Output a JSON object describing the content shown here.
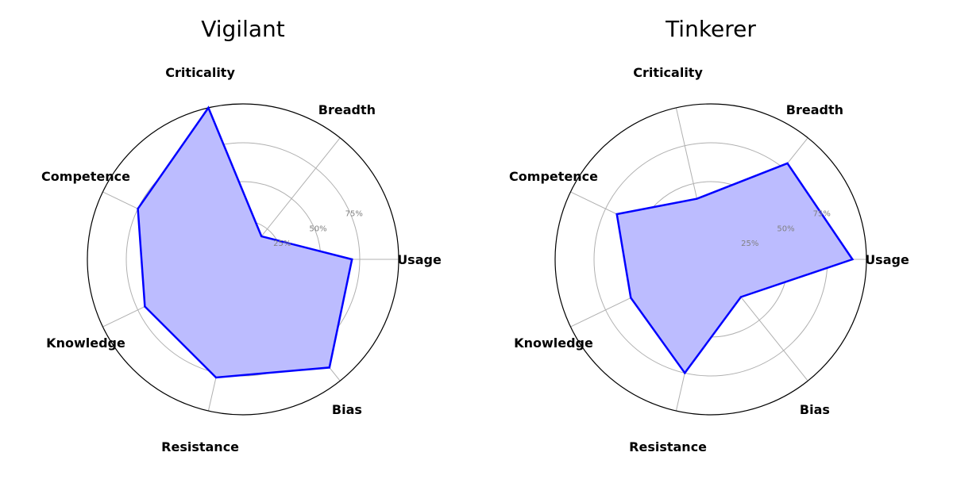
{
  "chart_data": [
    {
      "type": "radar",
      "title": "Vigilant",
      "categories": [
        "Usage",
        "Breadth",
        "Criticality",
        "Competence",
        "Knowledge",
        "Resistance",
        "Bias"
      ],
      "values": [
        70,
        19,
        100,
        75,
        70,
        78,
        89
      ],
      "rlim": [
        0,
        100
      ],
      "rticks": [
        "25%",
        "50%",
        "75%"
      ],
      "series_color": "#0000ff",
      "fill_color": "#bcbcff"
    },
    {
      "type": "radar",
      "title": "Tinkerer",
      "categories": [
        "Usage",
        "Breadth",
        "Criticality",
        "Competence",
        "Knowledge",
        "Resistance",
        "Bias"
      ],
      "values": [
        91,
        79,
        40,
        67,
        57,
        75,
        31
      ],
      "rlim": [
        0,
        100
      ],
      "rticks": [
        "25%",
        "50%",
        "75%"
      ],
      "series_color": "#0000ff",
      "fill_color": "#bcbcff"
    }
  ]
}
